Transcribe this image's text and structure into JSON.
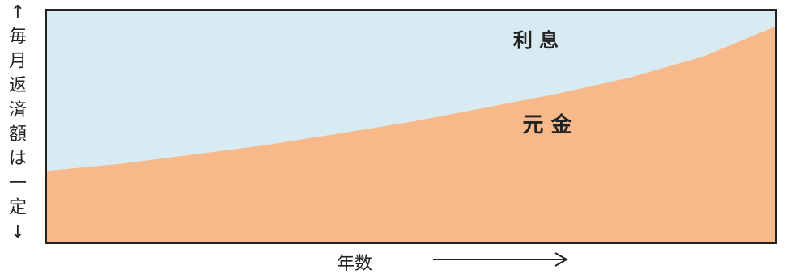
{
  "chart_data": {
    "type": "area",
    "stacked": true,
    "title": "",
    "xlabel": "年数",
    "ylabel": "毎月返済額は一定",
    "ylabel_arrows": [
      "↑",
      "↓"
    ],
    "x": [
      0,
      1,
      2,
      3,
      4,
      5,
      6,
      7,
      8,
      9,
      10
    ],
    "xlim": [
      0,
      10
    ],
    "ylim": [
      0,
      1
    ],
    "grid": false,
    "legend": "none",
    "series": [
      {
        "name": "元 金",
        "values": [
          0.31,
          0.34,
          0.38,
          0.42,
          0.47,
          0.52,
          0.58,
          0.64,
          0.71,
          0.8,
          0.93
        ],
        "color": "#f7b98a"
      },
      {
        "name": "利 息",
        "values": [
          0.69,
          0.66,
          0.62,
          0.58,
          0.53,
          0.48,
          0.42,
          0.36,
          0.29,
          0.2,
          0.07
        ],
        "color": "#d8ebf3"
      }
    ],
    "annotations": {
      "xarrow": "→"
    }
  }
}
